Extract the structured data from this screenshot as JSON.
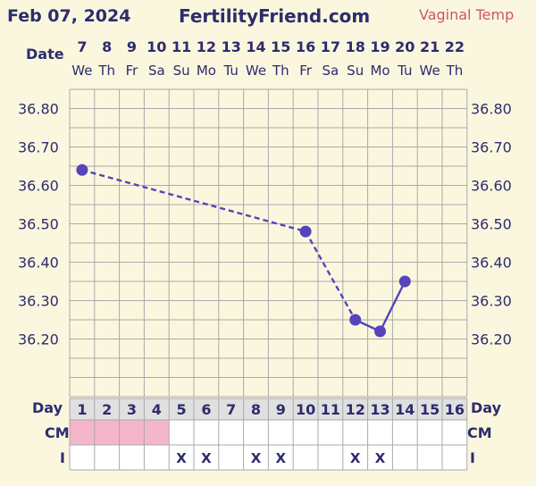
{
  "header": {
    "date": "Feb 07, 2024",
    "site": "FertilityFriend.com",
    "temp_type": "Vaginal Temp"
  },
  "colors": {
    "background": "#fbf7df",
    "grid": "#a9a9a9",
    "text": "#2c2c6e",
    "series": "#5544bb",
    "temp_type": "#cc5566",
    "cm_fill": "#f4b6c8",
    "day_band": "#e0e0e0"
  },
  "chart_data": {
    "type": "line",
    "title": "",
    "date_row_label": "Date",
    "dates": [
      "7",
      "8",
      "9",
      "10",
      "11",
      "12",
      "13",
      "14",
      "15",
      "16",
      "17",
      "18",
      "19",
      "20",
      "21",
      "22"
    ],
    "weekdays": [
      "We",
      "Th",
      "Fr",
      "Sa",
      "Su",
      "Mo",
      "Tu",
      "We",
      "Th",
      "Fr",
      "Sa",
      "Su",
      "Mo",
      "Tu",
      "We",
      "Th"
    ],
    "day_row_label": "Day",
    "cycle_days": [
      "1",
      "2",
      "3",
      "4",
      "5",
      "6",
      "7",
      "8",
      "9",
      "10",
      "11",
      "12",
      "13",
      "14",
      "15",
      "16"
    ],
    "y_ticks": [
      "36.80",
      "36.70",
      "36.60",
      "36.50",
      "36.40",
      "36.30",
      "36.20"
    ],
    "ylim": [
      36.1,
      36.9
    ],
    "series": [
      {
        "points": [
          {
            "day": 1,
            "temp": 36.64
          },
          {
            "day": 10,
            "temp": 36.48
          },
          {
            "day": 12,
            "temp": 36.25
          },
          {
            "day": 13,
            "temp": 36.22
          },
          {
            "day": 14,
            "temp": 36.35
          }
        ],
        "dashed_segments": [
          [
            1,
            10
          ],
          [
            10,
            12
          ]
        ]
      }
    ],
    "cm_row_label": "CM",
    "cm_days": [
      1,
      2,
      3,
      4
    ],
    "i_row_label": "I",
    "i_mark": "X",
    "i_days": [
      5,
      6,
      8,
      9,
      12,
      13
    ]
  }
}
